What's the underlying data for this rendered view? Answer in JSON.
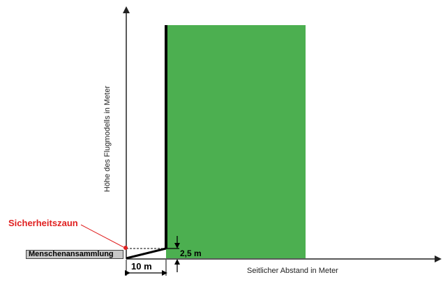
{
  "diagram": {
    "y_axis_label": "Höhe des Flugmodells in Meter",
    "x_axis_label": "Seitlicher Abstand in Meter",
    "fence_label": "Sicherheitszaun",
    "crowd_label": "Menschenansammlung",
    "distance_label": "10 m",
    "height_label": "2,5 m",
    "colors": {
      "zone_fill": "#4caf50",
      "fence_label": "#e02020",
      "axis": "#222222",
      "crowd_box": "#c8c8c8"
    }
  }
}
